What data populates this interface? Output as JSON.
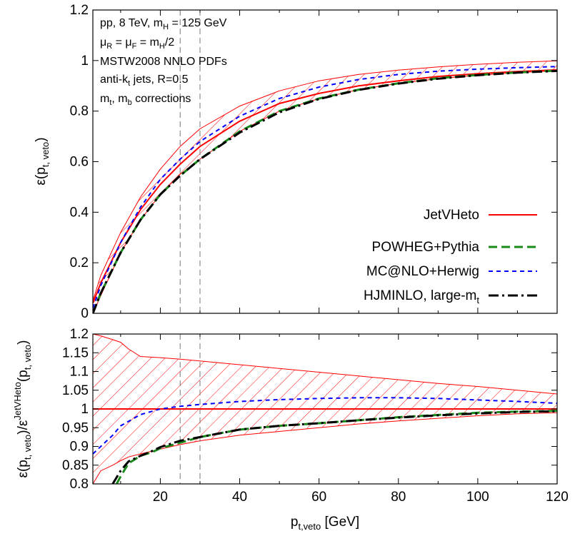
{
  "chart_data": [
    {
      "type": "line",
      "panel": "main",
      "ylabel": "ε(p_{t, veto})",
      "xlim": [
        3,
        120
      ],
      "ylim": [
        0,
        1.2
      ],
      "yticks": [
        "0",
        "0.2",
        "0.4",
        "0.6",
        "0.8",
        "1",
        "1.2"
      ],
      "vertical_dashed_lines_x": [
        25,
        30
      ],
      "annotations": [
        "pp, 8 TeV, m_H = 125 GeV",
        "μ_R = μ_F  = m_H/2",
        "MSTW2008 NNLO PDFs",
        "anti-k_t jets, R=0.5",
        "m_t, m_b corrections"
      ],
      "legend_position": "bottom-right",
      "series": [
        {
          "name": "JetVHeto",
          "color": "#ff0000",
          "style": "solid",
          "x": [
            3,
            5,
            10,
            15,
            20,
            25,
            30,
            40,
            50,
            60,
            70,
            80,
            90,
            100,
            110,
            120
          ],
          "y": [
            0.04,
            0.12,
            0.28,
            0.41,
            0.51,
            0.59,
            0.66,
            0.76,
            0.83,
            0.87,
            0.9,
            0.92,
            0.937,
            0.948,
            0.957,
            0.963
          ],
          "band_low": [
            0.0,
            0.07,
            0.24,
            0.37,
            0.47,
            0.55,
            0.61,
            0.72,
            0.8,
            0.85,
            0.885,
            0.91,
            0.928,
            0.942,
            0.952,
            0.96
          ],
          "band_high": [
            0.05,
            0.15,
            0.32,
            0.46,
            0.57,
            0.66,
            0.73,
            0.82,
            0.88,
            0.92,
            0.945,
            0.962,
            0.975,
            0.985,
            0.993,
            0.999
          ]
        },
        {
          "name": "POWHEG+Pythia",
          "color": "#1a8a1a",
          "style": "dashed",
          "x": [
            3,
            5,
            10,
            15,
            20,
            25,
            30,
            40,
            50,
            60,
            70,
            80,
            90,
            100,
            110,
            120
          ],
          "y": [
            0.0,
            0.08,
            0.24,
            0.37,
            0.47,
            0.545,
            0.61,
            0.72,
            0.8,
            0.85,
            0.885,
            0.91,
            0.93,
            0.943,
            0.953,
            0.96
          ]
        },
        {
          "name": "MC@NLO+Herwig",
          "color": "#0000ff",
          "style": "dotted",
          "x": [
            3,
            5,
            10,
            15,
            20,
            25,
            30,
            40,
            50,
            60,
            70,
            80,
            90,
            100,
            110,
            120
          ],
          "y": [
            0.02,
            0.11,
            0.28,
            0.42,
            0.53,
            0.61,
            0.68,
            0.78,
            0.85,
            0.895,
            0.925,
            0.945,
            0.958,
            0.966,
            0.972,
            0.976
          ]
        },
        {
          "name": "HJMINLO, large-m_t",
          "color": "#000000",
          "style": "dashdot",
          "x": [
            3,
            5,
            10,
            15,
            20,
            25,
            30,
            40,
            50,
            60,
            70,
            80,
            90,
            100,
            110,
            120
          ],
          "y": [
            0.0,
            0.08,
            0.24,
            0.37,
            0.47,
            0.545,
            0.61,
            0.715,
            0.795,
            0.848,
            0.884,
            0.909,
            0.928,
            0.942,
            0.952,
            0.959
          ]
        }
      ]
    },
    {
      "type": "line",
      "panel": "ratio",
      "ylabel": "ε(p_{t, veto})/ε^{JetVHeto}(p_{t, veto})",
      "xlabel": "p_{t,veto} [GeV]",
      "xlim": [
        3,
        120
      ],
      "ylim": [
        0.8,
        1.2
      ],
      "xticks": [
        "20",
        "40",
        "60",
        "80",
        "100",
        "120"
      ],
      "yticks": [
        "0.8",
        "0.85",
        "0.9",
        "0.95",
        "1",
        "1.05",
        "1.1",
        "1.15",
        "1.2"
      ],
      "vertical_dashed_lines_x": [
        25,
        30
      ],
      "series": [
        {
          "name": "JetVHeto",
          "color": "#ff0000",
          "style": "solid",
          "x": [
            3,
            120
          ],
          "y": [
            1.0,
            1.0
          ],
          "band_x": [
            3,
            5,
            8,
            10,
            12,
            15,
            20,
            25,
            30,
            40,
            50,
            60,
            70,
            80,
            90,
            100,
            110,
            120
          ],
          "band_low": [
            0.8,
            0.835,
            0.85,
            0.862,
            0.872,
            0.88,
            0.893,
            0.905,
            0.915,
            0.93,
            0.94,
            0.95,
            0.96,
            0.968,
            0.975,
            0.982,
            0.987,
            0.99
          ],
          "band_high": [
            1.2,
            1.195,
            1.185,
            1.178,
            1.16,
            1.14,
            1.137,
            1.133,
            1.128,
            1.118,
            1.108,
            1.098,
            1.088,
            1.078,
            1.068,
            1.06,
            1.05,
            1.04
          ]
        },
        {
          "name": "POWHEG+Pythia",
          "color": "#1a8a1a",
          "style": "dashed",
          "x": [
            9,
            10,
            12,
            15,
            18,
            20,
            25,
            30,
            35,
            40,
            50,
            60,
            70,
            80,
            90,
            100,
            110,
            120
          ],
          "y": [
            0.8,
            0.82,
            0.855,
            0.875,
            0.885,
            0.895,
            0.91,
            0.925,
            0.935,
            0.945,
            0.955,
            0.962,
            0.97,
            0.978,
            0.984,
            0.99,
            0.993,
            0.995
          ]
        },
        {
          "name": "MC@NLO+Herwig",
          "color": "#0000ff",
          "style": "dotted",
          "x": [
            3,
            5,
            8,
            10,
            15,
            20,
            25,
            30,
            40,
            50,
            60,
            70,
            80,
            90,
            100,
            110,
            120
          ],
          "y": [
            0.88,
            0.9,
            0.93,
            0.955,
            0.985,
            1.0,
            1.007,
            1.012,
            1.02,
            1.025,
            1.028,
            1.03,
            1.03,
            1.028,
            1.024,
            1.02,
            1.015
          ]
        },
        {
          "name": "HJMINLO, large-m_t",
          "color": "#000000",
          "style": "dashdot",
          "x": [
            8,
            10,
            12,
            15,
            18,
            20,
            25,
            30,
            35,
            40,
            50,
            60,
            70,
            80,
            90,
            100,
            110,
            120
          ],
          "y": [
            0.8,
            0.835,
            0.86,
            0.875,
            0.888,
            0.898,
            0.915,
            0.925,
            0.935,
            0.945,
            0.955,
            0.962,
            0.97,
            0.977,
            0.983,
            0.988,
            0.992,
            0.994
          ]
        }
      ]
    }
  ]
}
